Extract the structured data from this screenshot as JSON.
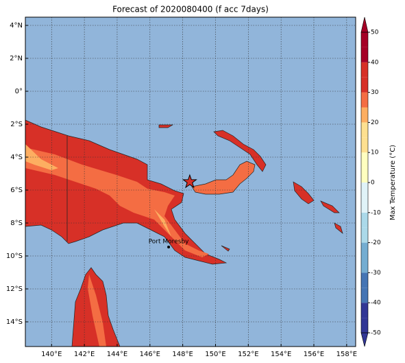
{
  "chart_data": {
    "type": "map",
    "title": "Forecast of 2020080400 (f acc 7days)",
    "xlim": [
      138.4,
      158.55
    ],
    "ylim": [
      -15.5,
      4.5
    ],
    "xticks": [
      {
        "value": 140,
        "label": "140°E"
      },
      {
        "value": 142,
        "label": "142°E"
      },
      {
        "value": 144,
        "label": "144°E"
      },
      {
        "value": 146,
        "label": "146°E"
      },
      {
        "value": 148,
        "label": "148°E"
      },
      {
        "value": 150,
        "label": "150°E"
      },
      {
        "value": 152,
        "label": "152°E"
      },
      {
        "value": 154,
        "label": "154°E"
      },
      {
        "value": 156,
        "label": "156°E"
      },
      {
        "value": 158,
        "label": "158°E"
      }
    ],
    "yticks": [
      {
        "value": 4,
        "label": "4°N"
      },
      {
        "value": 2,
        "label": "2°N"
      },
      {
        "value": 0,
        "label": "0°"
      },
      {
        "value": -2,
        "label": "2°S"
      },
      {
        "value": -4,
        "label": "4°S"
      },
      {
        "value": -6,
        "label": "6°S"
      },
      {
        "value": -8,
        "label": "8°S"
      },
      {
        "value": -10,
        "label": "10°S"
      },
      {
        "value": -12,
        "label": "12°S"
      },
      {
        "value": -14,
        "label": "14°S"
      }
    ],
    "grid": true,
    "ocean_color": "#91b5da",
    "annotation": {
      "text": "Port Moresby",
      "lon": 147.14,
      "lat": -9.46
    },
    "marker": {
      "lon": 148.43,
      "lat": -5.5
    },
    "colorbar": {
      "label": "Max Temperature (°C)",
      "lim": [
        -50,
        50
      ],
      "ticks": [
        50,
        40,
        30,
        20,
        10,
        0,
        -10,
        -20,
        -30,
        -40,
        -50
      ],
      "levels": [
        -50,
        -45,
        -40,
        -35,
        -30,
        -25,
        -20,
        -15,
        -10,
        -5,
        0,
        5,
        10,
        15,
        20,
        25,
        30,
        35,
        40,
        45,
        50
      ],
      "colors": [
        "#313695",
        "#313695",
        "#4575b4",
        "#4575b4",
        "#74add1",
        "#74add1",
        "#abd9e9",
        "#abd9e9",
        "#e0f3f8",
        "#e0f3f8",
        "#ffffbf",
        "#ffffbf",
        "#fee090",
        "#fee090",
        "#fdae61",
        "#f46d43",
        "#d73027",
        "#d73027",
        "#a50026",
        "#a50026"
      ]
    }
  }
}
